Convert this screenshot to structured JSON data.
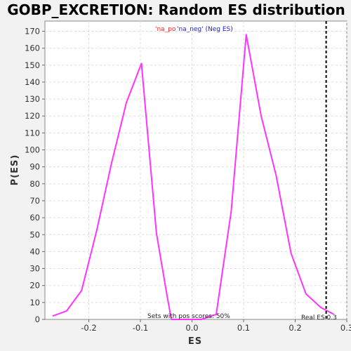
{
  "chart_data": {
    "type": "line",
    "title": "GOBP_EXCRETION: Random ES distribution",
    "xlabel": "ES",
    "ylabel": "P(ES)",
    "xlim": [
      -0.285,
      0.3
    ],
    "ylim": [
      0,
      176
    ],
    "x_ticks": [
      -0.2,
      -0.1,
      0.0,
      0.1,
      0.2,
      0.3
    ],
    "x_tick_labels": [
      "-0.2",
      "-0.1",
      "0.0",
      "0.1",
      "0.2",
      "0.3"
    ],
    "y_ticks": [
      0,
      10,
      20,
      30,
      40,
      50,
      60,
      70,
      80,
      90,
      100,
      110,
      120,
      130,
      140,
      150,
      160,
      170
    ],
    "y_tick_labels": [
      "0",
      "10",
      "20",
      "30",
      "40",
      "50",
      "60",
      "70",
      "80",
      "90",
      "100",
      "110",
      "120",
      "130",
      "140",
      "150",
      "160",
      "170"
    ],
    "grid": true,
    "series": [
      {
        "color": "#ff33ff",
        "x": [
          -0.27,
          -0.243,
          -0.214,
          -0.185,
          -0.156,
          -0.127,
          -0.098,
          -0.069,
          -0.05,
          -0.04,
          -0.011,
          0.018,
          0.047,
          0.076,
          0.105,
          0.134,
          0.163,
          0.192,
          0.221,
          0.25,
          0.275
        ],
        "y": [
          2,
          5,
          17,
          52,
          92,
          128,
          151,
          51,
          17,
          0,
          0,
          0,
          3,
          64,
          168,
          120,
          85,
          39,
          15,
          7,
          3
        ]
      }
    ],
    "legend": {
      "position": "top-center",
      "entries": [
        {
          "text": "'na_po",
          "color": "#ff2020"
        },
        {
          "text": "'na_neg' (Neg ES)",
          "color": "#2020cc"
        }
      ]
    },
    "reference_line": {
      "x": 0.26,
      "style": "dashed",
      "color": "#000000",
      "label": "Real ES 0.3"
    },
    "annotation": "Sets with pos scores: 50%"
  }
}
